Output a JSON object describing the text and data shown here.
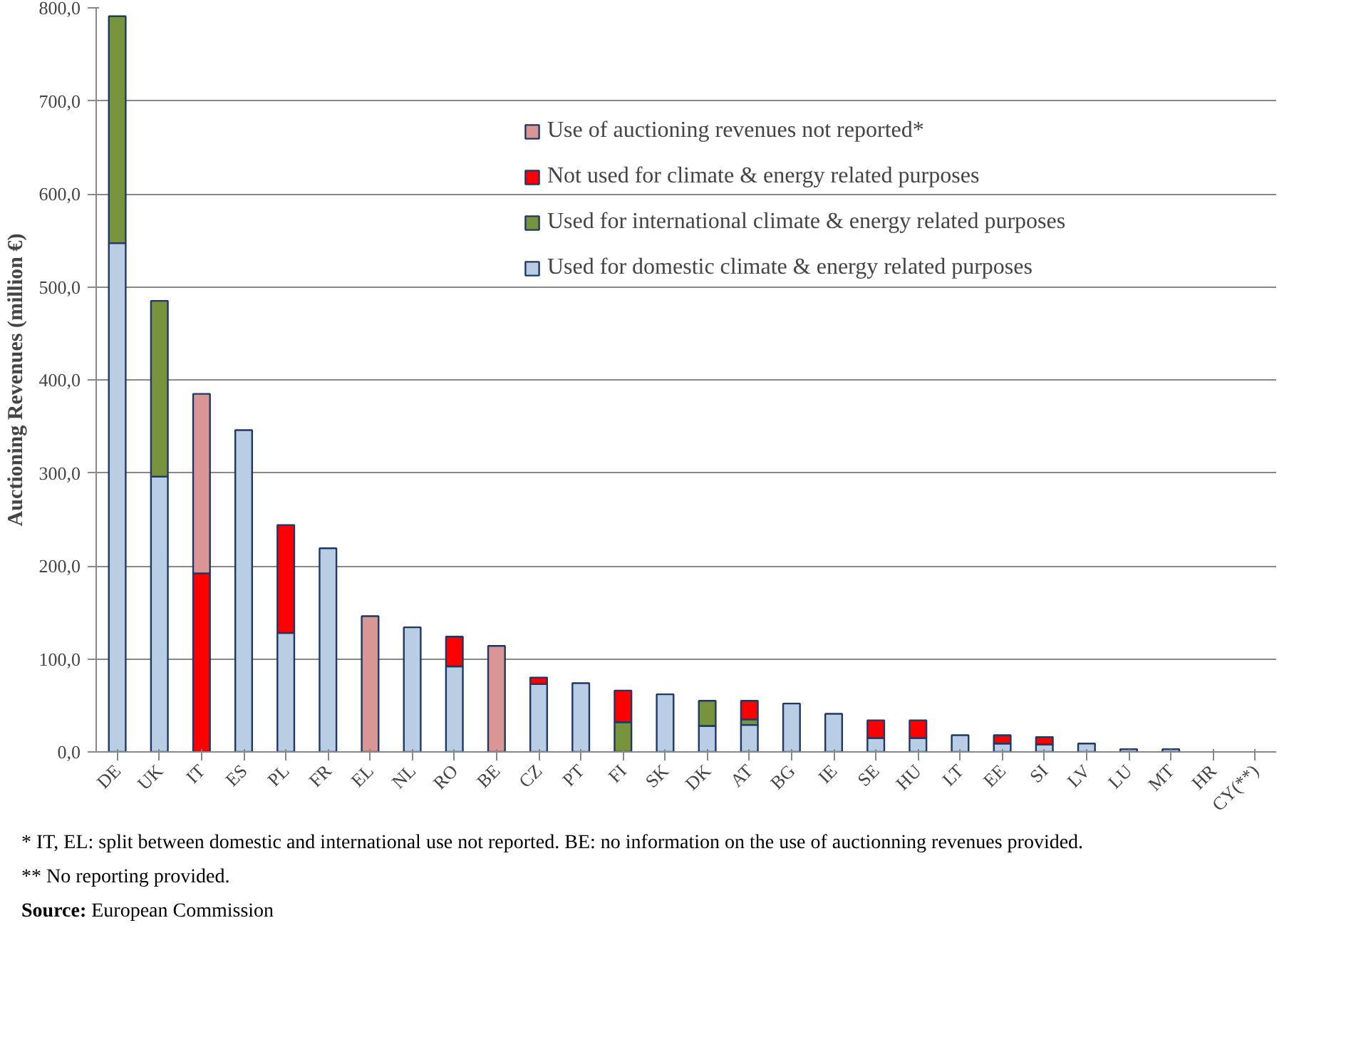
{
  "chart_data": {
    "type": "bar",
    "stacked": true,
    "ylabel": "Auctioning Revenues (million €)",
    "categories": [
      "DE",
      "UK",
      "IT",
      "ES",
      "PL",
      "FR",
      "EL",
      "NL",
      "RO",
      "BE",
      "CZ",
      "PT",
      "FI",
      "SK",
      "DK",
      "AT",
      "BG",
      "IE",
      "SE",
      "HU",
      "LT",
      "EE",
      "SI",
      "LV",
      "LU",
      "MT",
      "HR",
      "CY(**)"
    ],
    "series": [
      {
        "name": "Used for domestic climate & energy related purposes",
        "color": "#b9cde5",
        "values": [
          547,
          296,
          0,
          346,
          128,
          219,
          0,
          134,
          92,
          0,
          73,
          74,
          0,
          62,
          28,
          29,
          52,
          41,
          15,
          15,
          18,
          9,
          8,
          9,
          3,
          3,
          0,
          0
        ]
      },
      {
        "name": "Used for international climate & energy related purposes",
        "color": "#77933c",
        "values": [
          244,
          189,
          0,
          0,
          0,
          0,
          0,
          0,
          0,
          0,
          0,
          0,
          32,
          0,
          27,
          6,
          0,
          0,
          0,
          0,
          0,
          0,
          0,
          0,
          0,
          0,
          0,
          0
        ]
      },
      {
        "name": "Not used for climate & energy related purposes",
        "color": "#ff0000",
        "values": [
          0,
          0,
          192,
          0,
          116,
          0,
          0,
          0,
          32,
          0,
          7,
          0,
          34,
          0,
          0,
          20,
          0,
          0,
          19,
          19,
          0,
          9,
          8,
          0,
          0,
          0,
          0,
          0
        ]
      },
      {
        "name": "Use of auctioning revenues not reported*",
        "color": "#d99694",
        "values": [
          0,
          0,
          193,
          0,
          0,
          0,
          146,
          0,
          0,
          114,
          0,
          0,
          0,
          0,
          0,
          0,
          0,
          0,
          0,
          0,
          0,
          0,
          0,
          0,
          0,
          0,
          0,
          0
        ]
      }
    ],
    "ylim": [
      0,
      800
    ],
    "yticks": [
      {
        "value": 0,
        "label": "0,0"
      },
      {
        "value": 100,
        "label": "100,0"
      },
      {
        "value": 200,
        "label": "200,0"
      },
      {
        "value": 300,
        "label": "300,0"
      },
      {
        "value": 400,
        "label": "400,0"
      },
      {
        "value": 500,
        "label": "500,0"
      },
      {
        "value": 600,
        "label": "600,0"
      },
      {
        "value": 700,
        "label": "700,0"
      },
      {
        "value": 800,
        "label": "800,0"
      }
    ],
    "grid": "y",
    "legend": "top right",
    "annotations": [
      "* IT, EL: split between domestic and international use not reported. BE: no information on the use of auctionning revenues provided.",
      "** No reporting provided.",
      "Source: European Commission"
    ]
  }
}
